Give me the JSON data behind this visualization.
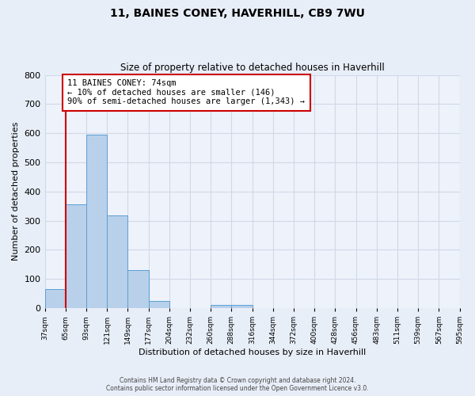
{
  "title": "11, BAINES CONEY, HAVERHILL, CB9 7WU",
  "subtitle": "Size of property relative to detached houses in Haverhill",
  "xlabel": "Distribution of detached houses by size in Haverhill",
  "ylabel": "Number of detached properties",
  "bin_labels": [
    "37sqm",
    "65sqm",
    "93sqm",
    "121sqm",
    "149sqm",
    "177sqm",
    "204sqm",
    "232sqm",
    "260sqm",
    "288sqm",
    "316sqm",
    "344sqm",
    "372sqm",
    "400sqm",
    "428sqm",
    "456sqm",
    "483sqm",
    "511sqm",
    "539sqm",
    "567sqm",
    "595sqm"
  ],
  "bar_values": [
    65,
    357,
    595,
    318,
    130,
    25,
    0,
    0,
    10,
    10,
    0,
    0,
    0,
    0,
    0,
    0,
    0,
    0,
    0,
    0
  ],
  "bar_color": "#b8d0ea",
  "bar_edge_color": "#5a9fd4",
  "vline_x": 1,
  "vline_color": "#cc0000",
  "ylim": [
    0,
    800
  ],
  "yticks": [
    0,
    100,
    200,
    300,
    400,
    500,
    600,
    700,
    800
  ],
  "annotation_title": "11 BAINES CONEY: 74sqm",
  "annotation_line1": "← 10% of detached houses are smaller (146)",
  "annotation_line2": "90% of semi-detached houses are larger (1,343) →",
  "annotation_box_color": "#ffffff",
  "annotation_box_edge": "#cc0000",
  "footer_line1": "Contains HM Land Registry data © Crown copyright and database right 2024.",
  "footer_line2": "Contains public sector information licensed under the Open Government Licence v3.0.",
  "background_color": "#e8eef8",
  "grid_color": "#d0d8e8",
  "plot_bg_color": "#eef2fb"
}
